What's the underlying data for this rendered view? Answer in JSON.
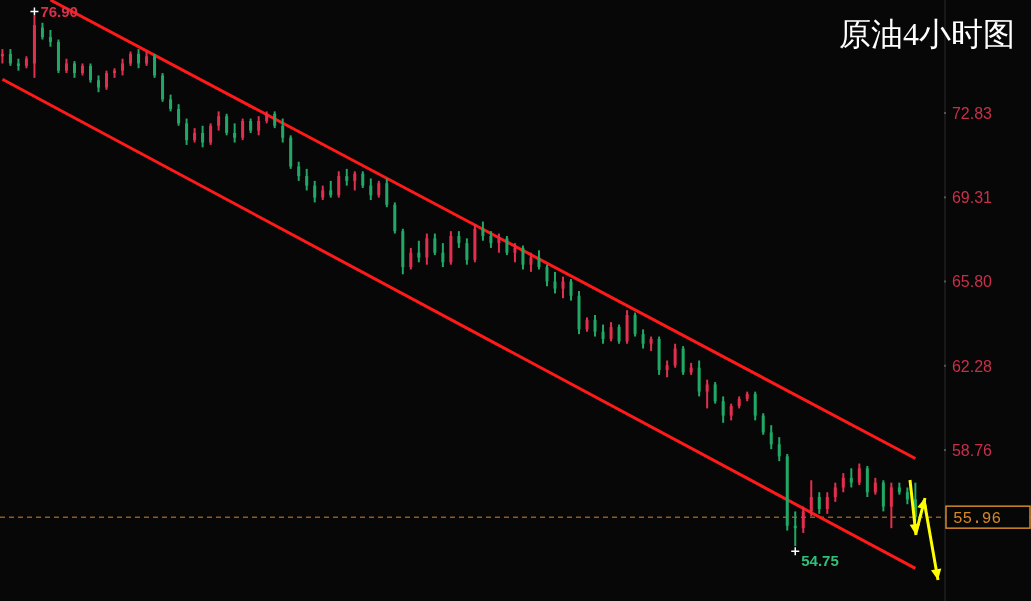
{
  "chart_data": {
    "type": "candlestick",
    "title": "原油4小时图",
    "categories": [
      null,
      null,
      null,
      null,
      null,
      null,
      null,
      null,
      null,
      null,
      null,
      null,
      null,
      null,
      null,
      null,
      null,
      null,
      null,
      null,
      null,
      null,
      null,
      null,
      null,
      null,
      null,
      null,
      null,
      null,
      null,
      null,
      null,
      null,
      null,
      null,
      null,
      null,
      null,
      null,
      null,
      null,
      null,
      null,
      null,
      null,
      null,
      null,
      null,
      null,
      null,
      null,
      null,
      null,
      null,
      null,
      null,
      null,
      null,
      null,
      null,
      null,
      null,
      null,
      null,
      null,
      null,
      null,
      null,
      null,
      null,
      null,
      null,
      null,
      null,
      null,
      null,
      null,
      null,
      null,
      null,
      null,
      null,
      null,
      null,
      null,
      null,
      null,
      null,
      null,
      null,
      null,
      null,
      null,
      null,
      null,
      null,
      null,
      null,
      null,
      null,
      null,
      null,
      null,
      null,
      null,
      null,
      null,
      null,
      null,
      null,
      null,
      null,
      null,
      null
    ],
    "ohlc": [
      [
        75.2,
        75.5,
        74.9,
        75.3
      ],
      [
        75.3,
        75.5,
        74.8,
        74.9
      ],
      [
        74.9,
        75.1,
        74.6,
        74.8
      ],
      [
        74.8,
        75.2,
        74.7,
        75.1
      ],
      [
        74.9,
        76.9,
        74.3,
        76.5
      ],
      [
        76.4,
        76.6,
        75.9,
        76.0
      ],
      [
        76.0,
        76.3,
        75.6,
        75.8
      ],
      [
        75.8,
        75.9,
        74.5,
        74.6
      ],
      [
        74.6,
        75.1,
        74.5,
        74.9
      ],
      [
        74.9,
        75.0,
        74.3,
        74.5
      ],
      [
        74.5,
        74.9,
        74.4,
        74.8
      ],
      [
        74.8,
        74.9,
        74.1,
        74.2
      ],
      [
        74.2,
        74.4,
        73.7,
        73.9
      ],
      [
        73.9,
        74.6,
        73.8,
        74.5
      ],
      [
        74.5,
        74.7,
        74.3,
        74.6
      ],
      [
        74.6,
        75.1,
        74.4,
        74.9
      ],
      [
        74.9,
        75.4,
        74.8,
        75.3
      ],
      [
        75.3,
        75.5,
        74.7,
        74.9
      ],
      [
        74.9,
        75.4,
        74.8,
        75.2
      ],
      [
        75.2,
        75.3,
        74.3,
        74.4
      ],
      [
        74.4,
        74.5,
        73.3,
        73.4
      ],
      [
        73.4,
        73.6,
        72.9,
        73.0
      ],
      [
        73.0,
        73.2,
        72.3,
        72.4
      ],
      [
        72.4,
        72.6,
        71.5,
        71.7
      ],
      [
        71.7,
        72.2,
        71.6,
        72.0
      ],
      [
        72.0,
        72.3,
        71.4,
        71.6
      ],
      [
        71.6,
        72.4,
        71.5,
        72.3
      ],
      [
        72.3,
        72.9,
        72.1,
        72.7
      ],
      [
        72.7,
        72.8,
        71.9,
        72.0
      ],
      [
        72.0,
        72.4,
        71.6,
        71.8
      ],
      [
        71.8,
        72.6,
        71.7,
        72.5
      ],
      [
        72.5,
        72.6,
        72.0,
        72.1
      ],
      [
        72.1,
        72.7,
        71.9,
        72.5
      ],
      [
        72.5,
        72.9,
        72.4,
        72.8
      ],
      [
        72.8,
        72.9,
        72.2,
        72.3
      ],
      [
        72.3,
        72.6,
        71.6,
        71.8
      ],
      [
        71.8,
        71.9,
        70.5,
        70.6
      ],
      [
        70.6,
        70.8,
        70.0,
        70.2
      ],
      [
        70.2,
        70.5,
        69.6,
        69.8
      ],
      [
        69.8,
        70.0,
        69.1,
        69.3
      ],
      [
        69.3,
        69.8,
        69.2,
        69.6
      ],
      [
        69.6,
        70.0,
        69.3,
        69.4
      ],
      [
        69.4,
        70.4,
        69.3,
        70.2
      ],
      [
        70.2,
        70.5,
        69.8,
        70.0
      ],
      [
        70.0,
        70.4,
        69.6,
        70.3
      ],
      [
        70.3,
        70.4,
        69.7,
        69.8
      ],
      [
        69.8,
        70.1,
        69.2,
        69.4
      ],
      [
        69.4,
        70.0,
        69.3,
        69.9
      ],
      [
        69.9,
        70.1,
        68.9,
        69.0
      ],
      [
        69.0,
        69.1,
        67.8,
        67.9
      ],
      [
        67.9,
        68.0,
        66.1,
        66.4
      ],
      [
        66.4,
        67.2,
        66.3,
        67.0
      ],
      [
        67.0,
        67.5,
        66.6,
        66.8
      ],
      [
        66.8,
        67.8,
        66.5,
        67.6
      ],
      [
        67.6,
        67.8,
        66.9,
        67.0
      ],
      [
        67.0,
        67.4,
        66.4,
        66.6
      ],
      [
        66.6,
        67.9,
        66.5,
        67.7
      ],
      [
        67.7,
        67.9,
        67.2,
        67.4
      ],
      [
        67.4,
        67.6,
        66.5,
        66.7
      ],
      [
        66.7,
        68.2,
        66.6,
        68.0
      ],
      [
        68.0,
        68.3,
        67.5,
        67.7
      ],
      [
        67.7,
        67.9,
        67.2,
        67.4
      ],
      [
        67.4,
        67.8,
        67.0,
        67.6
      ],
      [
        67.6,
        67.7,
        66.9,
        67.0
      ],
      [
        67.0,
        67.4,
        66.6,
        67.2
      ],
      [
        67.2,
        67.3,
        66.3,
        66.5
      ],
      [
        66.5,
        67.0,
        66.2,
        66.8
      ],
      [
        66.8,
        67.1,
        66.3,
        66.4
      ],
      [
        66.4,
        66.5,
        65.6,
        65.8
      ],
      [
        65.8,
        66.2,
        65.3,
        65.5
      ],
      [
        65.5,
        66.0,
        65.1,
        65.8
      ],
      [
        65.8,
        65.9,
        65.0,
        65.2
      ],
      [
        65.2,
        65.4,
        63.6,
        63.8
      ],
      [
        63.8,
        64.3,
        63.7,
        64.2
      ],
      [
        64.2,
        64.4,
        63.5,
        63.7
      ],
      [
        63.7,
        64.0,
        63.2,
        63.4
      ],
      [
        63.4,
        64.1,
        63.3,
        63.9
      ],
      [
        63.9,
        64.0,
        63.2,
        63.3
      ],
      [
        63.3,
        64.6,
        63.2,
        64.4
      ],
      [
        64.4,
        64.5,
        63.5,
        63.6
      ],
      [
        63.6,
        63.8,
        63.0,
        63.2
      ],
      [
        63.2,
        63.5,
        62.9,
        63.4
      ],
      [
        63.4,
        63.5,
        61.9,
        62.1
      ],
      [
        62.1,
        62.5,
        61.8,
        62.3
      ],
      [
        62.3,
        63.2,
        62.2,
        63.0
      ],
      [
        63.0,
        63.1,
        61.9,
        62.0
      ],
      [
        62.0,
        62.4,
        61.9,
        62.2
      ],
      [
        62.2,
        62.5,
        61.0,
        61.2
      ],
      [
        61.2,
        61.7,
        60.5,
        61.5
      ],
      [
        61.5,
        61.6,
        60.7,
        60.8
      ],
      [
        60.8,
        61.0,
        59.9,
        60.2
      ],
      [
        60.2,
        60.7,
        60.0,
        60.6
      ],
      [
        60.6,
        61.0,
        60.5,
        60.9
      ],
      [
        60.9,
        61.2,
        60.8,
        61.1
      ],
      [
        61.1,
        61.2,
        60.0,
        60.2
      ],
      [
        60.2,
        60.3,
        59.4,
        59.5
      ],
      [
        59.5,
        59.8,
        58.8,
        59.0
      ],
      [
        59.0,
        59.3,
        58.3,
        58.5
      ],
      [
        58.5,
        58.6,
        55.4,
        55.6
      ],
      [
        55.6,
        56.2,
        54.75,
        55.5
      ],
      [
        55.5,
        56.4,
        55.3,
        56.2
      ],
      [
        56.2,
        57.5,
        56.0,
        56.8
      ],
      [
        56.8,
        57.0,
        56.1,
        56.3
      ],
      [
        56.3,
        57.0,
        56.1,
        56.8
      ],
      [
        56.8,
        57.4,
        56.6,
        57.2
      ],
      [
        57.2,
        57.8,
        57.0,
        57.6
      ],
      [
        57.6,
        58.0,
        57.2,
        57.4
      ],
      [
        57.4,
        58.2,
        57.3,
        58.0
      ],
      [
        58.0,
        58.1,
        56.8,
        57.0
      ],
      [
        57.0,
        57.6,
        56.9,
        57.4
      ],
      [
        57.4,
        57.5,
        56.2,
        56.4
      ],
      [
        56.4,
        57.4,
        55.5,
        57.2
      ],
      [
        57.2,
        57.4,
        56.9,
        57.0
      ],
      [
        57.0,
        57.2,
        56.5,
        56.7
      ],
      [
        56.7,
        57.4,
        55.8,
        55.96
      ]
    ],
    "colors": [
      "#e0304e",
      "#22a866",
      "#22a866",
      "#e0304e",
      "#e0304e",
      "#22a866",
      "#22a866",
      "#22a866",
      "#e0304e",
      "#22a866",
      "#e0304e",
      "#22a866",
      "#22a866",
      "#e0304e",
      "#e0304e",
      "#e0304e",
      "#e0304e",
      "#22a866",
      "#e0304e",
      "#22a866",
      "#22a866",
      "#22a866",
      "#22a866",
      "#22a866",
      "#e0304e",
      "#22a866",
      "#e0304e",
      "#e0304e",
      "#22a866",
      "#22a866",
      "#e0304e",
      "#22a866",
      "#e0304e",
      "#e0304e",
      "#22a866",
      "#22a866",
      "#22a866",
      "#22a866",
      "#22a866",
      "#22a866",
      "#e0304e",
      "#22a866",
      "#e0304e",
      "#22a866",
      "#e0304e",
      "#22a866",
      "#22a866",
      "#e0304e",
      "#22a866",
      "#22a866",
      "#22a866",
      "#e0304e",
      "#22a866",
      "#e0304e",
      "#22a866",
      "#22a866",
      "#e0304e",
      "#22a866",
      "#22a866",
      "#e0304e",
      "#22a866",
      "#22a866",
      "#e0304e",
      "#22a866",
      "#e0304e",
      "#22a866",
      "#e0304e",
      "#22a866",
      "#22a866",
      "#22a866",
      "#e0304e",
      "#22a866",
      "#22a866",
      "#e0304e",
      "#22a866",
      "#22a866",
      "#e0304e",
      "#22a866",
      "#e0304e",
      "#22a866",
      "#22a866",
      "#e0304e",
      "#22a866",
      "#e0304e",
      "#e0304e",
      "#22a866",
      "#e0304e",
      "#22a866",
      "#e0304e",
      "#22a866",
      "#22a866",
      "#e0304e",
      "#e0304e",
      "#e0304e",
      "#22a866",
      "#22a866",
      "#22a866",
      "#22a866",
      "#22a866",
      "#22a866",
      "#e0304e",
      "#e0304e",
      "#22a866",
      "#e0304e",
      "#e0304e",
      "#e0304e",
      "#22a866",
      "#e0304e",
      "#22a866",
      "#e0304e",
      "#22a866",
      "#e0304e",
      "#22a866",
      "#22a866",
      "#22a866"
    ],
    "series": [
      {
        "type": "line",
        "color": "#ff1a1a",
        "values": [
          null,
          null,
          null,
          null,
          null,
          null,
          77.55,
          null,
          null,
          null,
          null,
          null,
          null,
          null,
          null,
          null,
          null,
          null,
          null,
          null,
          null,
          null,
          null,
          null,
          null,
          null,
          null,
          null,
          null,
          null,
          null,
          null,
          null,
          null,
          null,
          null,
          null,
          null,
          null,
          null,
          null,
          null,
          null,
          null,
          null,
          null,
          null,
          null,
          null,
          null,
          null,
          null,
          null,
          null,
          null,
          null,
          null,
          null,
          null,
          null,
          null,
          null,
          null,
          null,
          null,
          null,
          null,
          null,
          null,
          null,
          null,
          null,
          null,
          null,
          null,
          null,
          null,
          null,
          null,
          null,
          null,
          null,
          null,
          null,
          null,
          null,
          null,
          null,
          null,
          null,
          null,
          null,
          null,
          null,
          null,
          null,
          null,
          null,
          null,
          null,
          null,
          null,
          null,
          null,
          null,
          null,
          null,
          null,
          null,
          null,
          null,
          null,
          null,
          null,
          58.41
        ]
      },
      {
        "type": "line",
        "color": "#ff1a1a",
        "values": [
          74.24,
          null,
          null,
          null,
          null,
          null,
          null,
          null,
          null,
          null,
          null,
          null,
          null,
          null,
          null,
          null,
          null,
          null,
          null,
          null,
          null,
          null,
          null,
          null,
          null,
          null,
          null,
          null,
          null,
          null,
          null,
          null,
          null,
          null,
          null,
          null,
          null,
          null,
          null,
          null,
          null,
          null,
          null,
          null,
          null,
          null,
          null,
          null,
          null,
          null,
          null,
          null,
          null,
          null,
          null,
          null,
          null,
          null,
          null,
          null,
          null,
          null,
          null,
          null,
          null,
          null,
          null,
          null,
          null,
          null,
          null,
          null,
          null,
          null,
          null,
          null,
          null,
          null,
          null,
          null,
          null,
          null,
          null,
          null,
          null,
          null,
          null,
          null,
          null,
          null,
          null,
          null,
          null,
          null,
          null,
          null,
          null,
          null,
          null,
          null,
          null,
          null,
          null,
          null,
          null,
          null,
          null,
          null,
          null,
          null,
          null,
          null,
          null,
          null,
          53.82
        ]
      }
    ],
    "ylim": [
      52.46,
      77.55
    ],
    "yticks": [
      72.83,
      69.31,
      {
        "value": 65.8,
        "label": "65.80"
      },
      62.28,
      58.76
    ],
    "ref_lines": [
      {
        "axis": "y",
        "value": 55.96,
        "label": "55.96",
        "color": "#d4882a",
        "line_style": "dashed"
      }
    ],
    "annotations": [
      "76.90",
      "54.75"
    ],
    "grid": false
  }
}
